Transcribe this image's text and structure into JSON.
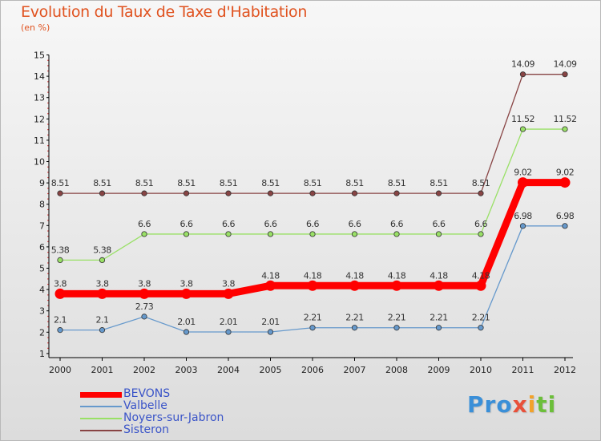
{
  "title": "Evolution du Taux de Taxe d'Habitation",
  "subtitle": "(en %)",
  "logo": {
    "p1": "Pro",
    "p2": "x",
    "p3": "i",
    "p4": "ti"
  },
  "chart_data": {
    "type": "line",
    "x": [
      "2000",
      "2001",
      "2002",
      "2003",
      "2004",
      "2005",
      "2006",
      "2007",
      "2008",
      "2009",
      "2010",
      "2011",
      "2012"
    ],
    "ylim": [
      0.5,
      15
    ],
    "yticks": [
      1,
      2,
      3,
      4,
      5,
      6,
      7,
      8,
      9,
      10,
      11,
      12,
      13,
      14,
      15
    ],
    "grid": false,
    "legend_placement": "bottom-left",
    "series": [
      {
        "name": "BEVONS",
        "color": "#ff0000",
        "values": [
          3.8,
          3.8,
          3.8,
          3.8,
          3.8,
          4.18,
          4.18,
          4.18,
          4.18,
          4.18,
          4.18,
          9.02,
          9.02
        ],
        "labels": [
          "3.8",
          "3.8",
          "3.8",
          "3.8",
          "3.8",
          "4.18",
          "4.18",
          "4.18",
          "4.18",
          "4.18",
          "4.18",
          "9.02",
          "9.02"
        ]
      },
      {
        "name": "Valbelle",
        "color": "#6699cc",
        "values": [
          2.1,
          2.1,
          2.73,
          2.01,
          2.01,
          2.01,
          2.21,
          2.21,
          2.21,
          2.21,
          2.21,
          6.98,
          6.98
        ],
        "labels": [
          "2.1",
          "2.1",
          "2.73",
          "2.01",
          "2.01",
          "2.01",
          "2.21",
          "2.21",
          "2.21",
          "2.21",
          "2.21",
          "6.98",
          "6.98"
        ]
      },
      {
        "name": "Noyers-sur-Jabron",
        "color": "#99e066",
        "values": [
          5.38,
          5.38,
          6.6,
          6.6,
          6.6,
          6.6,
          6.6,
          6.6,
          6.6,
          6.6,
          6.6,
          11.52,
          11.52
        ],
        "labels": [
          "5.38",
          "5.38",
          "6.6",
          "6.6",
          "6.6",
          "6.6",
          "6.6",
          "6.6",
          "6.6",
          "6.6",
          "6.6",
          "11.52",
          "11.52"
        ]
      },
      {
        "name": "Sisteron",
        "color": "#884444",
        "values": [
          8.51,
          8.51,
          8.51,
          8.51,
          8.51,
          8.51,
          8.51,
          8.51,
          8.51,
          8.51,
          8.51,
          14.09,
          14.09
        ],
        "labels": [
          "8.51",
          "8.51",
          "8.51",
          "8.51",
          "8.51",
          "8.51",
          "8.51",
          "8.51",
          "8.51",
          "8.51",
          "8.51",
          "14.09",
          "14.09"
        ]
      }
    ]
  }
}
